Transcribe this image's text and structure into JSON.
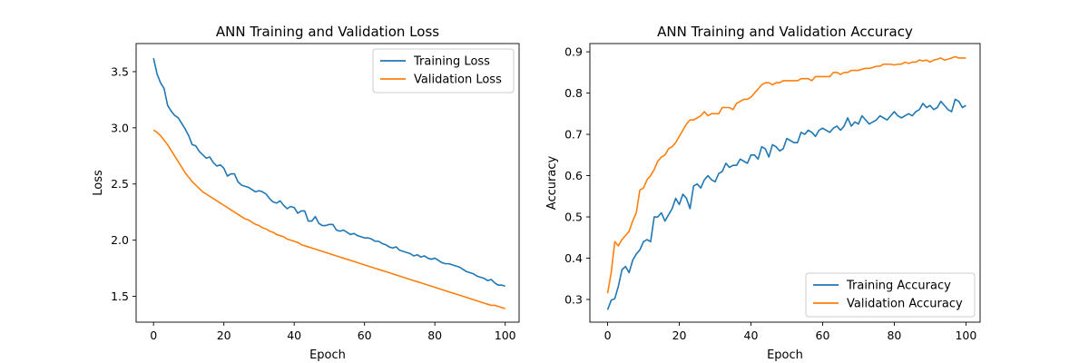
{
  "chart_data": [
    {
      "type": "line",
      "title": "ANN Training and Validation Loss",
      "xlabel": "Epoch",
      "ylabel": "Loss",
      "xlim": [
        -4.95,
        103.95
      ],
      "ylim": [
        1.27,
        3.75
      ],
      "xticks": [
        0,
        20,
        40,
        60,
        80,
        100
      ],
      "yticks": [
        1.5,
        2.0,
        2.5,
        3.0,
        3.5
      ],
      "ytick_labels": [
        "1.5",
        "2.0",
        "2.5",
        "3.0",
        "3.5"
      ],
      "grid": false,
      "legend_position": "upper right",
      "series": [
        {
          "name": "Training Loss",
          "color": "#1f77b4",
          "values": [
            3.62,
            3.48,
            3.4,
            3.35,
            3.2,
            3.15,
            3.11,
            3.09,
            3.04,
            2.99,
            2.93,
            2.85,
            2.84,
            2.79,
            2.76,
            2.73,
            2.74,
            2.69,
            2.66,
            2.67,
            2.64,
            2.57,
            2.59,
            2.59,
            2.52,
            2.49,
            2.48,
            2.47,
            2.45,
            2.43,
            2.44,
            2.43,
            2.41,
            2.37,
            2.34,
            2.33,
            2.35,
            2.31,
            2.28,
            2.3,
            2.29,
            2.24,
            2.26,
            2.26,
            2.17,
            2.17,
            2.21,
            2.15,
            2.13,
            2.13,
            2.14,
            2.14,
            2.09,
            2.08,
            2.09,
            2.07,
            2.05,
            2.06,
            2.04,
            2.03,
            2.02,
            2.02,
            2.01,
            1.99,
            1.99,
            1.97,
            1.96,
            1.94,
            1.93,
            1.94,
            1.91,
            1.9,
            1.89,
            1.88,
            1.86,
            1.87,
            1.85,
            1.86,
            1.84,
            1.83,
            1.84,
            1.82,
            1.8,
            1.79,
            1.79,
            1.78,
            1.77,
            1.76,
            1.74,
            1.72,
            1.71,
            1.7,
            1.68,
            1.67,
            1.66,
            1.64,
            1.65,
            1.62,
            1.6,
            1.6,
            1.59
          ]
        },
        {
          "name": "Validation Loss",
          "color": "#ff7f0e",
          "values": [
            2.98,
            2.96,
            2.93,
            2.89,
            2.85,
            2.8,
            2.75,
            2.7,
            2.65,
            2.6,
            2.56,
            2.52,
            2.49,
            2.46,
            2.43,
            2.41,
            2.39,
            2.37,
            2.35,
            2.33,
            2.31,
            2.29,
            2.27,
            2.25,
            2.23,
            2.21,
            2.19,
            2.18,
            2.16,
            2.14,
            2.13,
            2.11,
            2.1,
            2.08,
            2.07,
            2.05,
            2.04,
            2.03,
            2.01,
            2.0,
            1.99,
            1.98,
            1.96,
            1.95,
            1.94,
            1.93,
            1.92,
            1.91,
            1.9,
            1.89,
            1.88,
            1.87,
            1.86,
            1.85,
            1.84,
            1.83,
            1.82,
            1.81,
            1.8,
            1.79,
            1.78,
            1.77,
            1.76,
            1.75,
            1.74,
            1.73,
            1.72,
            1.71,
            1.7,
            1.69,
            1.68,
            1.67,
            1.66,
            1.65,
            1.64,
            1.63,
            1.62,
            1.61,
            1.6,
            1.59,
            1.58,
            1.57,
            1.56,
            1.55,
            1.54,
            1.53,
            1.52,
            1.51,
            1.5,
            1.49,
            1.48,
            1.47,
            1.46,
            1.45,
            1.44,
            1.43,
            1.42,
            1.42,
            1.41,
            1.4,
            1.39
          ]
        }
      ]
    },
    {
      "type": "line",
      "title": "ANN Training and Validation Accuracy",
      "xlabel": "Epoch",
      "ylabel": "Accuracy",
      "xlim": [
        -4.95,
        103.95
      ],
      "ylim": [
        0.245,
        0.92
      ],
      "xticks": [
        0,
        20,
        40,
        60,
        80,
        100
      ],
      "yticks": [
        0.3,
        0.4,
        0.5,
        0.6,
        0.7,
        0.8,
        0.9
      ],
      "ytick_labels": [
        "0.3",
        "0.4",
        "0.5",
        "0.6",
        "0.7",
        "0.8",
        "0.9"
      ],
      "grid": false,
      "legend_position": "lower right",
      "series": [
        {
          "name": "Training Accuracy",
          "color": "#1f77b4",
          "values": [
            0.275,
            0.298,
            0.302,
            0.332,
            0.372,
            0.38,
            0.365,
            0.395,
            0.41,
            0.42,
            0.44,
            0.445,
            0.44,
            0.5,
            0.5,
            0.51,
            0.49,
            0.505,
            0.52,
            0.545,
            0.53,
            0.555,
            0.545,
            0.52,
            0.575,
            0.58,
            0.57,
            0.59,
            0.6,
            0.59,
            0.585,
            0.605,
            0.61,
            0.63,
            0.62,
            0.625,
            0.625,
            0.64,
            0.635,
            0.63,
            0.65,
            0.65,
            0.64,
            0.67,
            0.665,
            0.645,
            0.675,
            0.67,
            0.66,
            0.665,
            0.69,
            0.685,
            0.68,
            0.68,
            0.705,
            0.7,
            0.71,
            0.705,
            0.695,
            0.71,
            0.715,
            0.71,
            0.705,
            0.715,
            0.72,
            0.71,
            0.72,
            0.74,
            0.72,
            0.73,
            0.725,
            0.745,
            0.735,
            0.725,
            0.73,
            0.735,
            0.745,
            0.74,
            0.735,
            0.745,
            0.755,
            0.745,
            0.74,
            0.745,
            0.75,
            0.745,
            0.755,
            0.76,
            0.775,
            0.765,
            0.77,
            0.76,
            0.765,
            0.78,
            0.77,
            0.76,
            0.755,
            0.785,
            0.78,
            0.765,
            0.77
          ]
        },
        {
          "name": "Validation Accuracy",
          "color": "#ff7f0e",
          "values": [
            0.315,
            0.365,
            0.44,
            0.43,
            0.445,
            0.455,
            0.465,
            0.49,
            0.51,
            0.565,
            0.57,
            0.59,
            0.6,
            0.615,
            0.635,
            0.645,
            0.65,
            0.665,
            0.67,
            0.68,
            0.695,
            0.71,
            0.725,
            0.735,
            0.735,
            0.74,
            0.745,
            0.755,
            0.745,
            0.75,
            0.75,
            0.75,
            0.765,
            0.765,
            0.765,
            0.76,
            0.775,
            0.78,
            0.785,
            0.785,
            0.79,
            0.8,
            0.81,
            0.82,
            0.825,
            0.825,
            0.82,
            0.825,
            0.825,
            0.83,
            0.83,
            0.83,
            0.83,
            0.83,
            0.835,
            0.835,
            0.835,
            0.83,
            0.84,
            0.84,
            0.84,
            0.84,
            0.84,
            0.85,
            0.85,
            0.845,
            0.85,
            0.85,
            0.855,
            0.855,
            0.855,
            0.858,
            0.86,
            0.86,
            0.862,
            0.865,
            0.865,
            0.87,
            0.87,
            0.87,
            0.868,
            0.87,
            0.87,
            0.875,
            0.872,
            0.875,
            0.875,
            0.88,
            0.878,
            0.88,
            0.875,
            0.88,
            0.882,
            0.885,
            0.88,
            0.882,
            0.885,
            0.888,
            0.885,
            0.885,
            0.885
          ]
        }
      ]
    }
  ]
}
